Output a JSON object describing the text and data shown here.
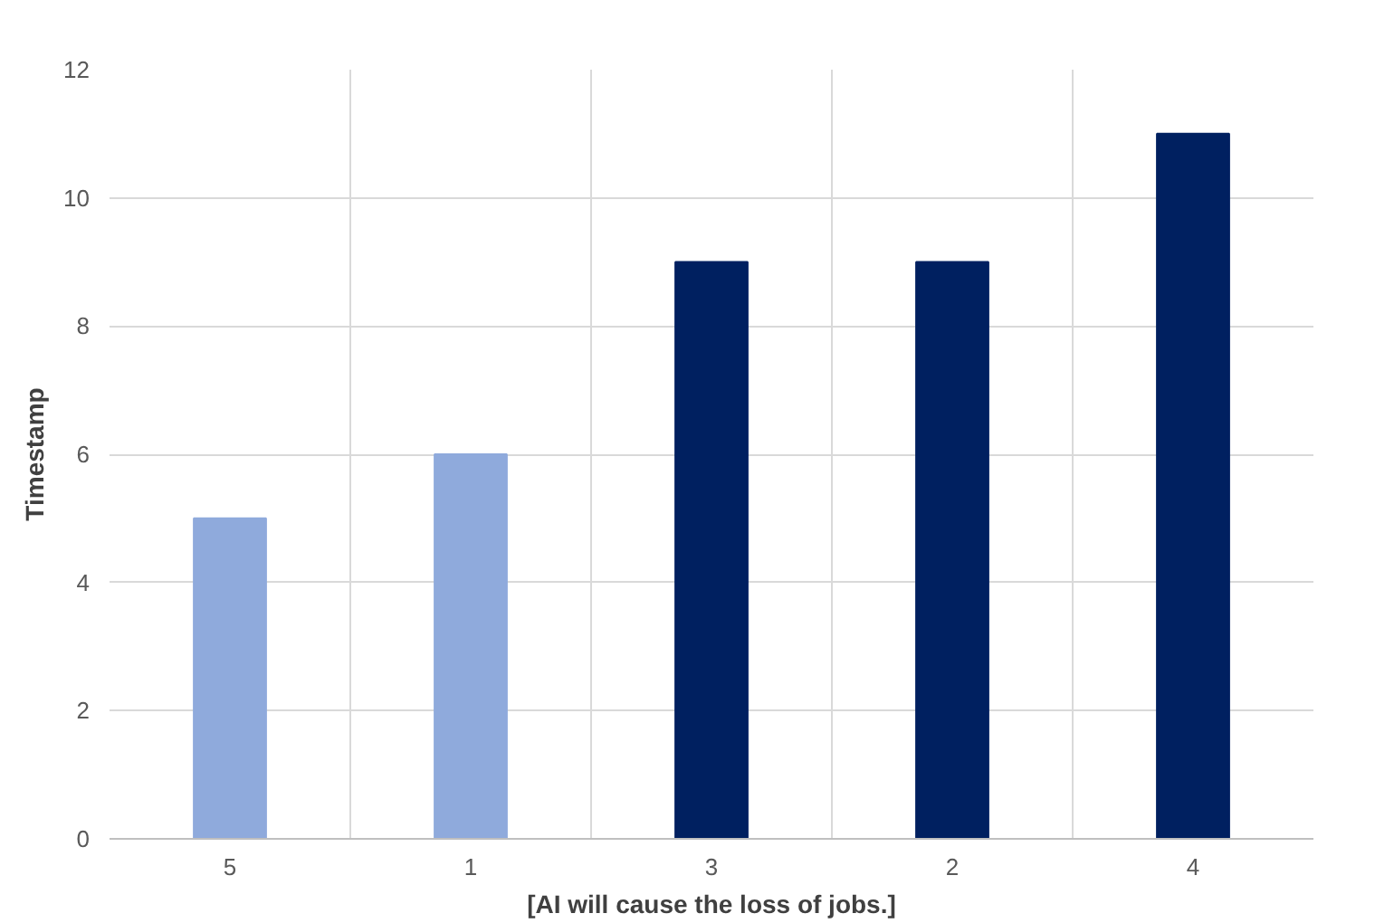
{
  "chart_data": {
    "type": "bar",
    "xlabel": "[AI will cause the loss of jobs.]",
    "ylabel": "Timestamp",
    "categories": [
      "5",
      "1",
      "3",
      "2",
      "4"
    ],
    "values": [
      5,
      6,
      9,
      9,
      11
    ],
    "colors": [
      "#8faadc",
      "#8faadc",
      "#002060",
      "#002060",
      "#002060"
    ],
    "ylim": [
      0,
      12
    ],
    "yticks": [
      0,
      2,
      4,
      6,
      8,
      10,
      12
    ],
    "grid": true
  }
}
